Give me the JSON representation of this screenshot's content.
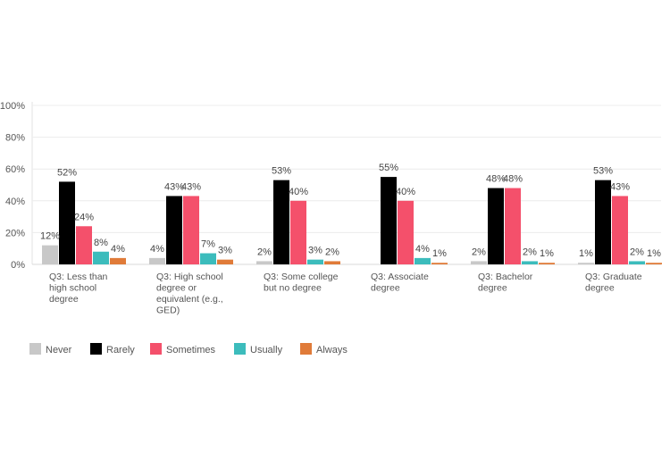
{
  "chart_data": {
    "type": "bar",
    "categories": [
      "Q3: Less than high school degree",
      "Q3: High school degree or equivalent (e.g., GED)",
      "Q3: Some college but no degree",
      "Q3: Associate degree",
      "Q3: Bachelor degree",
      "Q3: Graduate degree"
    ],
    "category_lines": [
      [
        "Q3: Less than",
        "high school",
        "degree"
      ],
      [
        "Q3: High school",
        "degree or",
        "equivalent (e.g.,",
        "GED)"
      ],
      [
        "Q3: Some college",
        "but no degree"
      ],
      [
        "Q3: Associate",
        "degree"
      ],
      [
        "Q3: Bachelor",
        "degree"
      ],
      [
        "Q3: Graduate",
        "degree"
      ]
    ],
    "series": [
      {
        "name": "Never",
        "color": "#c8c8c8",
        "values": [
          12,
          4,
          2,
          0,
          2,
          1
        ],
        "labels": [
          "12%",
          "4%",
          "2%",
          "",
          "2%",
          "1%"
        ]
      },
      {
        "name": "Rarely",
        "color": "#000000",
        "values": [
          52,
          43,
          53,
          55,
          48,
          53
        ],
        "labels": [
          "52%",
          "43%",
          "53%",
          "55%",
          "48%",
          "53%"
        ]
      },
      {
        "name": "Sometimes",
        "color": "#f4506b",
        "values": [
          24,
          43,
          40,
          40,
          48,
          43
        ],
        "labels": [
          "24%",
          "43%",
          "40%",
          "40%",
          "48%",
          "43%"
        ]
      },
      {
        "name": "Usually",
        "color": "#3cbcbc",
        "values": [
          8,
          7,
          3,
          4,
          2,
          2
        ],
        "labels": [
          "8%",
          "7%",
          "3%",
          "4%",
          "2%",
          "2%"
        ]
      },
      {
        "name": "Always",
        "color": "#e07b39",
        "values": [
          4,
          3,
          2,
          1,
          1,
          1
        ],
        "labels": [
          "4%",
          "3%",
          "2%",
          "1%",
          "1%",
          "1%"
        ]
      }
    ],
    "yticks": [
      "0%",
      "20%",
      "40%",
      "60%",
      "80%",
      "100%"
    ],
    "ylim": [
      0,
      100
    ],
    "grid": true,
    "legend_position": "bottom-left"
  }
}
